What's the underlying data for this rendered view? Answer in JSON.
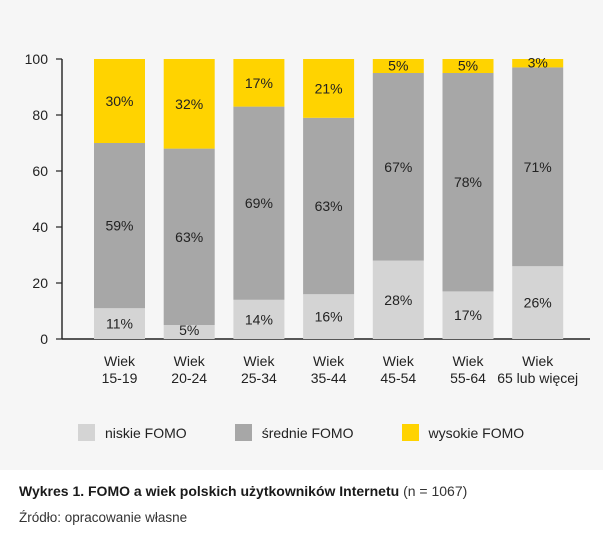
{
  "chart_data": {
    "type": "bar",
    "stacked": true,
    "categories": [
      [
        "Wiek",
        "15-19"
      ],
      [
        "Wiek",
        "20-24"
      ],
      [
        "Wiek",
        "25-34"
      ],
      [
        "Wiek",
        "35-44"
      ],
      [
        "Wiek",
        "45-54"
      ],
      [
        "Wiek",
        "55-64"
      ],
      [
        "Wiek",
        "65 lub więcej"
      ]
    ],
    "series": [
      {
        "name": "niskie FOMO",
        "color": "#d4d4d4",
        "values": [
          11,
          5,
          14,
          16,
          28,
          17,
          26
        ],
        "labels": [
          "11%",
          "5%",
          "14%",
          "16%",
          "28%",
          "17%",
          "26%"
        ]
      },
      {
        "name": "średnie FOMO",
        "color": "#a7a7a7",
        "values": [
          59,
          63,
          69,
          63,
          67,
          78,
          71
        ],
        "labels": [
          "59%",
          "63%",
          "69%",
          "63%",
          "67%",
          "78%",
          "71%"
        ]
      },
      {
        "name": "wysokie FOMO",
        "color": "#ffd300",
        "values": [
          30,
          32,
          17,
          21,
          5,
          5,
          3
        ],
        "labels": [
          "30%",
          "32%",
          "17%",
          "21%",
          "5%",
          "5%",
          "3%"
        ]
      }
    ],
    "ylim": [
      0,
      100
    ],
    "yticks": [
      0,
      20,
      40,
      60,
      80,
      100
    ],
    "grid": false,
    "legend": "bottom"
  },
  "caption": {
    "title": "Wykres 1. FOMO a wiek polskich użytkowników Internetu",
    "n": "(n = 1067)",
    "source": "Źródło: opracowanie własne"
  }
}
